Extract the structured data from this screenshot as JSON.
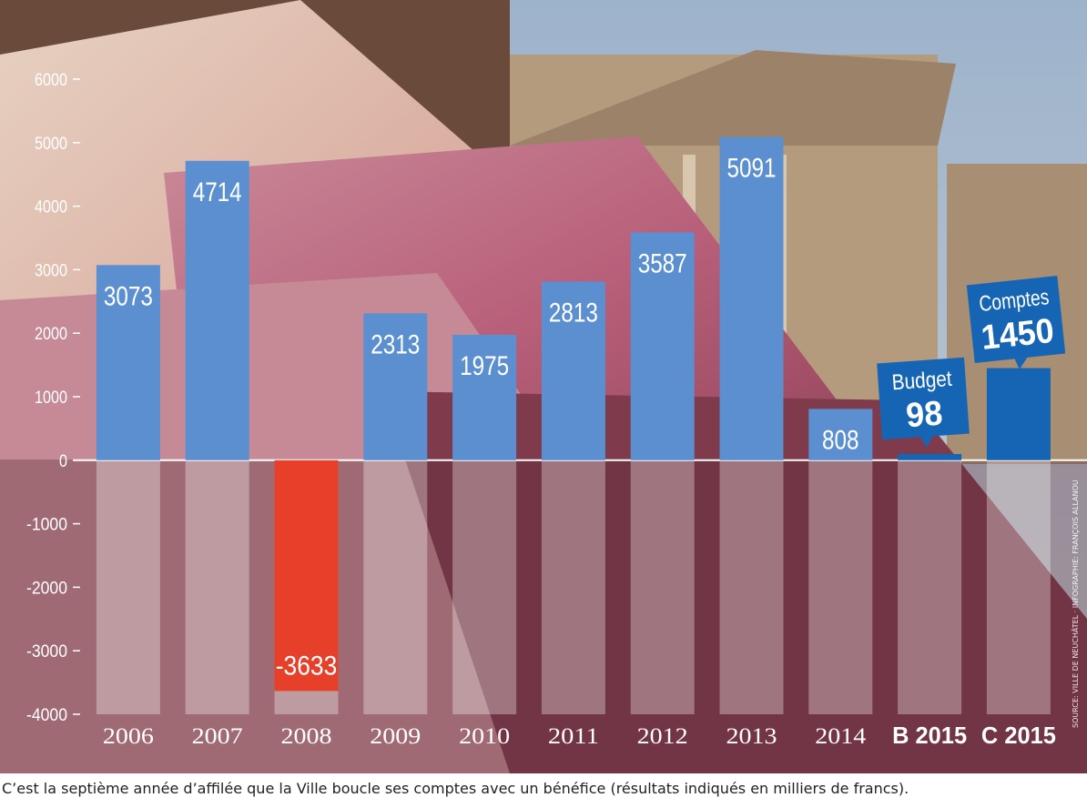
{
  "caption": "C’est la septième année d’affilée que la Ville boucle ses comptes avec un bénéfice (résultats indiqués en milliers de francs).",
  "source_note": "SOURCE: VILLE DE NEUCHÂTEL · INFOGRAPHIE: FRANÇOIS ALLANOU",
  "chart_data": {
    "type": "bar",
    "title": "",
    "xlabel": "",
    "ylabel": "",
    "ylim": [
      -4000,
      6000
    ],
    "yticks": [
      6000,
      5000,
      4000,
      3000,
      2000,
      1000,
      0,
      -1000,
      -2000,
      -3000,
      -4000
    ],
    "grid": false,
    "categories": [
      "2006",
      "2007",
      "2008",
      "2009",
      "2010",
      "2011",
      "2012",
      "2013",
      "2014",
      "B 2015",
      "C 2015"
    ],
    "values": [
      3073,
      4714,
      -3633,
      2313,
      1975,
      2813,
      3587,
      5091,
      808,
      98,
      1450
    ],
    "data_labels": [
      "3073",
      "4714",
      "-3633",
      "2313",
      "1975",
      "2813",
      "3587",
      "5091",
      "808",
      "98",
      "1450"
    ],
    "callouts": [
      {
        "category": "B 2015",
        "label": "Budget",
        "value": "98"
      },
      {
        "category": "C 2015",
        "label": "Comptes",
        "value": "1450"
      }
    ],
    "colors": {
      "positive": "#5b8fd0",
      "negative": "#e6402a",
      "budget": "#1665b5",
      "comptes": "#1665b5",
      "label_text": "#ffffff",
      "axis_text": "#ffffff"
    }
  }
}
